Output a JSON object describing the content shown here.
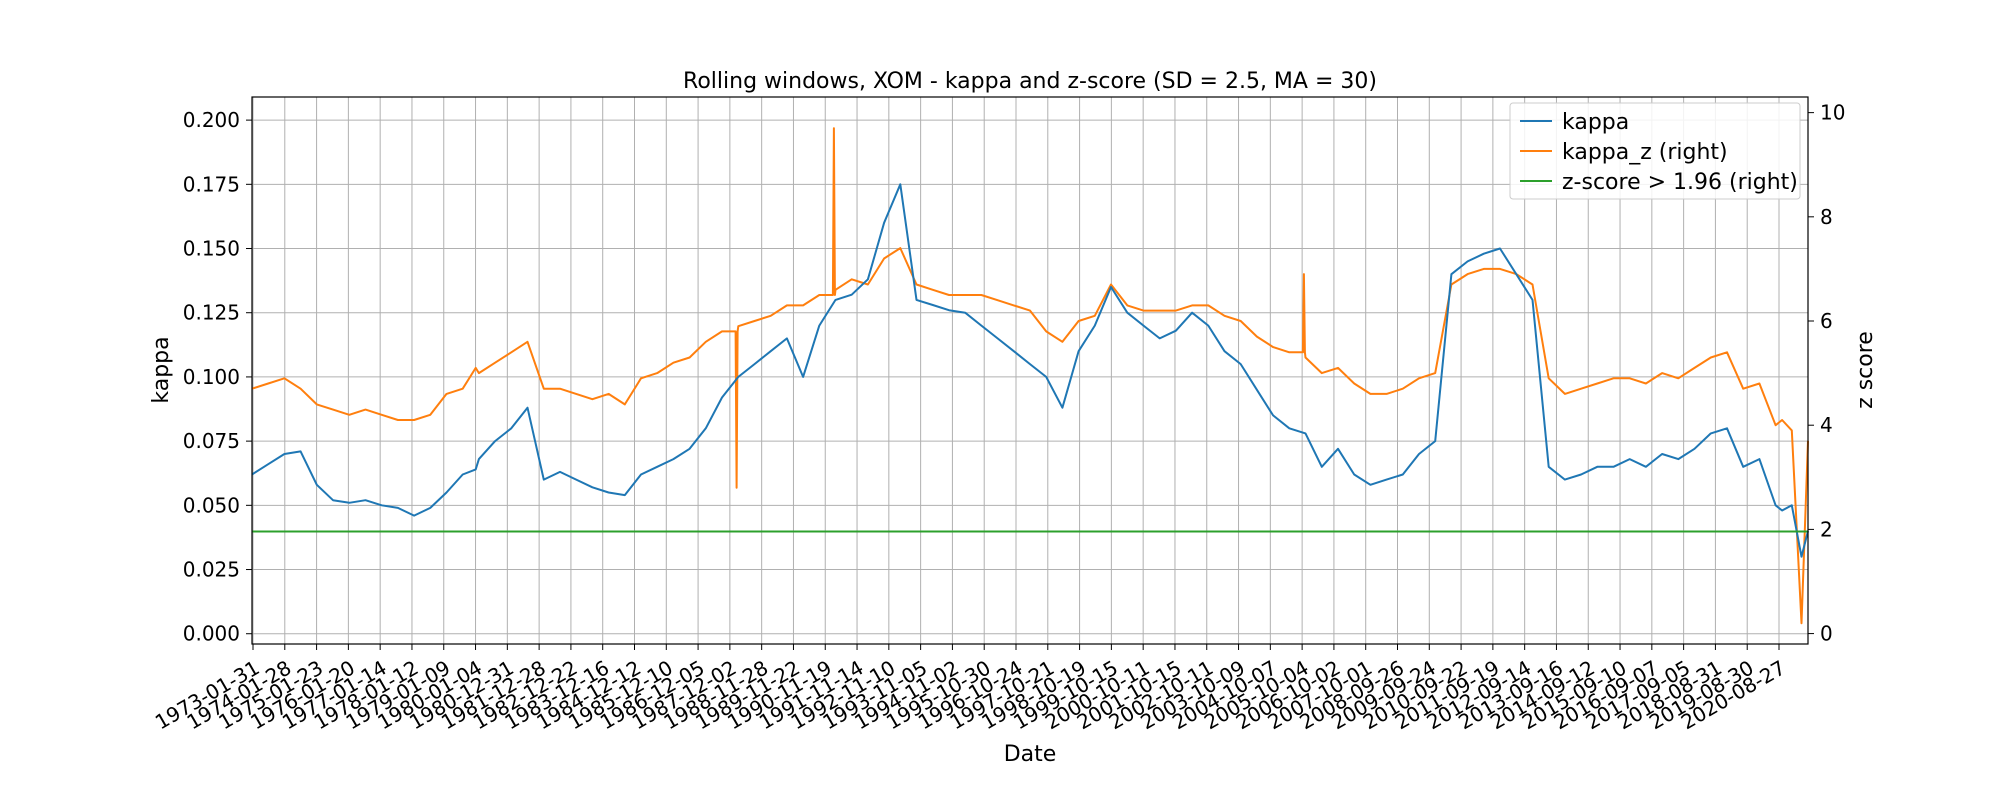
{
  "chart_data": {
    "type": "line",
    "title": "Rolling windows, XOM - kappa and z-score (SD = 2.5, MA = 30)",
    "xlabel": "Date",
    "ylabel": "kappa",
    "ylabel_right": "z score",
    "grid": true,
    "legend_position": "top-right",
    "x_tick_labels": [
      "1973-01-31",
      "1974-01-28",
      "1975-01-23",
      "1976-01-20",
      "1977-01-14",
      "1978-01-12",
      "1979-01-09",
      "1980-01-04",
      "1980-12-31",
      "1981-12-28",
      "1982-12-22",
      "1983-12-16",
      "1984-12-12",
      "1985-12-10",
      "1986-12-05",
      "1987-12-02",
      "1988-11-28",
      "1989-11-22",
      "1990-11-19",
      "1991-11-14",
      "1992-11-10",
      "1993-11-05",
      "1994-11-02",
      "1995-10-30",
      "1996-10-24",
      "1997-10-21",
      "1998-10-19",
      "1999-10-15",
      "2000-10-11",
      "2001-10-15",
      "2002-10-11",
      "2003-10-09",
      "2004-10-07",
      "2005-10-04",
      "2006-10-02",
      "2007-10-01",
      "2008-09-26",
      "2009-09-24",
      "2010-09-22",
      "2011-09-19",
      "2012-09-14",
      "2013-09-16",
      "2014-09-12",
      "2015-09-10",
      "2016-09-07",
      "2017-09-05",
      "2018-08-31",
      "2019-08-30",
      "2020-08-27"
    ],
    "y_left_ticks": [
      "0.000",
      "0.025",
      "0.050",
      "0.075",
      "0.100",
      "0.125",
      "0.150",
      "0.175",
      "0.200"
    ],
    "y_left_range": [
      -0.004,
      0.209
    ],
    "y_right_ticks": [
      "0",
      "2",
      "4",
      "6",
      "8",
      "10"
    ],
    "y_right_range": [
      -0.2,
      10.3
    ],
    "x_range": [
      1973.0,
      2021.0
    ],
    "series": [
      {
        "name": "kappa",
        "axis": "left",
        "color": "#1f77b4",
        "x": [
          1973.0,
          1973.5,
          1974.0,
          1974.5,
          1975.0,
          1975.5,
          1976.0,
          1976.5,
          1977.0,
          1977.5,
          1978.0,
          1978.5,
          1979.0,
          1979.5,
          1979.9,
          1980.0,
          1980.5,
          1981.0,
          1981.5,
          1982.0,
          1982.5,
          1983.0,
          1983.5,
          1984.0,
          1984.5,
          1985.0,
          1985.5,
          1986.0,
          1986.5,
          1987.0,
          1987.5,
          1988.0,
          1988.5,
          1989.0,
          1989.5,
          1990.0,
          1990.5,
          1991.0,
          1991.5,
          1992.0,
          1992.5,
          1993.0,
          1993.5,
          1994.0,
          1994.5,
          1995.0,
          1995.5,
          1996.0,
          1996.5,
          1997.0,
          1997.5,
          1998.0,
          1998.5,
          1999.0,
          1999.5,
          2000.0,
          2000.5,
          2001.0,
          2001.5,
          2002.0,
          2002.5,
          2003.0,
          2003.5,
          2004.0,
          2004.5,
          2005.0,
          2005.5,
          2006.0,
          2006.5,
          2007.0,
          2007.5,
          2008.0,
          2008.5,
          2009.0,
          2009.5,
          2010.0,
          2010.5,
          2011.0,
          2011.5,
          2012.0,
          2012.5,
          2013.0,
          2013.5,
          2014.0,
          2014.5,
          2015.0,
          2015.5,
          2016.0,
          2016.5,
          2017.0,
          2017.5,
          2018.0,
          2018.5,
          2019.0,
          2019.5,
          2020.0,
          2020.2,
          2020.5,
          2020.8,
          2021.0
        ],
        "y": [
          0.062,
          0.066,
          0.07,
          0.071,
          0.058,
          0.052,
          0.051,
          0.052,
          0.05,
          0.049,
          0.046,
          0.049,
          0.055,
          0.062,
          0.064,
          0.068,
          0.075,
          0.08,
          0.088,
          0.06,
          0.063,
          0.06,
          0.057,
          0.055,
          0.054,
          0.062,
          0.065,
          0.068,
          0.072,
          0.08,
          0.092,
          0.1,
          0.105,
          0.11,
          0.115,
          0.1,
          0.12,
          0.13,
          0.132,
          0.138,
          0.16,
          0.175,
          0.13,
          0.128,
          0.126,
          0.125,
          0.12,
          0.115,
          0.11,
          0.105,
          0.1,
          0.088,
          0.11,
          0.12,
          0.135,
          0.125,
          0.12,
          0.115,
          0.118,
          0.125,
          0.12,
          0.11,
          0.105,
          0.095,
          0.085,
          0.08,
          0.078,
          0.065,
          0.072,
          0.062,
          0.058,
          0.06,
          0.062,
          0.07,
          0.075,
          0.14,
          0.145,
          0.148,
          0.15,
          0.14,
          0.13,
          0.065,
          0.06,
          0.062,
          0.065,
          0.065,
          0.068,
          0.065,
          0.07,
          0.068,
          0.072,
          0.078,
          0.08,
          0.065,
          0.068,
          0.05,
          0.048,
          0.05,
          0.03,
          0.04
        ]
      },
      {
        "name": "kappa_z (right)",
        "axis": "right",
        "color": "#ff7f0e",
        "x": [
          1973.0,
          1973.5,
          1974.0,
          1974.5,
          1975.0,
          1975.5,
          1976.0,
          1976.5,
          1977.0,
          1977.5,
          1978.0,
          1978.5,
          1979.0,
          1979.5,
          1979.9,
          1980.0,
          1980.5,
          1981.0,
          1981.5,
          1982.0,
          1982.5,
          1983.0,
          1983.5,
          1984.0,
          1984.5,
          1985.0,
          1985.5,
          1986.0,
          1986.5,
          1987.0,
          1987.5,
          1988.0,
          1988.5,
          1989.0,
          1989.5,
          1990.0,
          1990.5,
          1991.0,
          1991.5,
          1992.0,
          1992.5,
          1993.0,
          1993.5,
          1994.0,
          1994.5,
          1995.0,
          1995.5,
          1996.0,
          1996.5,
          1997.0,
          1997.5,
          1998.0,
          1998.5,
          1999.0,
          1999.5,
          2000.0,
          2000.5,
          2001.0,
          2001.5,
          2002.0,
          2002.5,
          2003.0,
          2003.5,
          2004.0,
          2004.5,
          2005.0,
          2005.5,
          2006.0,
          2006.5,
          2007.0,
          2007.5,
          2008.0,
          2008.5,
          2009.0,
          2009.5,
          2010.0,
          2010.5,
          2011.0,
          2011.5,
          2012.0,
          2012.5,
          2013.0,
          2013.5,
          2014.0,
          2014.5,
          2015.0,
          2015.5,
          2016.0,
          2016.5,
          2017.0,
          2017.5,
          2018.0,
          2018.5,
          2019.0,
          2019.5,
          2020.0,
          2020.2,
          2020.5,
          2020.8,
          2021.0
        ],
        "y": [
          4.7,
          4.8,
          4.9,
          4.7,
          4.4,
          4.3,
          4.2,
          4.3,
          4.2,
          4.1,
          4.1,
          4.2,
          4.6,
          4.7,
          5.1,
          5.0,
          5.2,
          5.4,
          5.6,
          4.7,
          4.7,
          4.6,
          4.5,
          4.6,
          4.4,
          4.9,
          5.0,
          5.2,
          5.3,
          5.6,
          5.8,
          5.9,
          6.0,
          6.1,
          6.3,
          6.3,
          6.5,
          6.6,
          6.8,
          6.7,
          7.2,
          7.4,
          6.7,
          6.6,
          6.5,
          6.5,
          6.5,
          6.4,
          6.3,
          6.2,
          5.8,
          5.6,
          6.0,
          6.1,
          6.7,
          6.3,
          6.2,
          6.2,
          6.2,
          6.3,
          6.3,
          6.1,
          6.0,
          5.7,
          5.5,
          5.4,
          5.3,
          5.0,
          5.1,
          4.8,
          4.6,
          4.6,
          4.7,
          4.9,
          5.0,
          6.7,
          6.9,
          7.0,
          7.0,
          6.9,
          6.7,
          4.9,
          4.6,
          4.7,
          4.8,
          4.9,
          4.9,
          4.8,
          5.0,
          4.9,
          5.1,
          5.3,
          5.4,
          4.7,
          4.8,
          4.0,
          4.1,
          3.9,
          0.2,
          3.7
        ]
      },
      {
        "name": "z-score > 1.96 (right)",
        "axis": "right",
        "color": "#2ca02c",
        "x": [
          1973.0,
          2021.0
        ],
        "y": [
          1.96,
          1.96
        ]
      }
    ],
    "annotations_spikes": [
      {
        "series": "kappa_z (right)",
        "x": 1987.95,
        "y": 2.8
      },
      {
        "series": "kappa_z (right)",
        "x": 1990.95,
        "y": 9.7
      },
      {
        "series": "kappa_z (right)",
        "x": 2005.45,
        "y": 6.9
      }
    ]
  }
}
